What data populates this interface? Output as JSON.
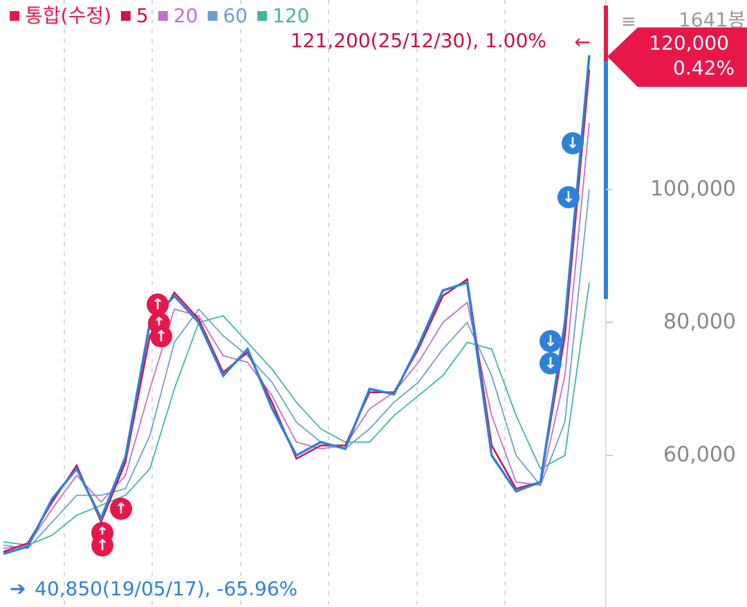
{
  "chart_data": {
    "type": "line",
    "legend": [
      "통합(수정)",
      "5",
      "20",
      "60",
      "120"
    ],
    "bar_count": "1641봉",
    "max_annotation": "121,200(25/12/30), 1.00%",
    "min_annotation": "40,850(19/05/17), -65.96%",
    "current": {
      "value": 120000,
      "label": "120,000"
    },
    "current_change": "0.42%",
    "ylim": [
      37200,
      128500
    ],
    "yticks": [
      {
        "value": 60000,
        "label": "60,000"
      },
      {
        "value": 80000,
        "label": "80,000"
      },
      {
        "value": 100000,
        "label": "100,000"
      }
    ],
    "series": [
      {
        "name": "통합(수정)",
        "color": "#2f80d8",
        "legend_color": "#e8174a",
        "values": [
          45200,
          46300,
          53500,
          58000,
          50500,
          59800,
          80000,
          84000,
          80000,
          72000,
          76000,
          67100,
          60000,
          62000,
          61000,
          70000,
          69200,
          76500,
          84800,
          86000,
          60000,
          54600,
          56000,
          80000,
          120200
        ]
      },
      {
        "name": "5",
        "color": "#d0124a",
        "values": [
          45500,
          46800,
          53000,
          58500,
          50000,
          59000,
          78000,
          84500,
          80500,
          72500,
          75500,
          68000,
          59500,
          61500,
          61500,
          69500,
          69500,
          76000,
          84000,
          86500,
          61500,
          55000,
          56000,
          78000,
          118000
        ]
      },
      {
        "name": "20",
        "color": "#c070d0",
        "values": [
          46000,
          46500,
          52000,
          57000,
          53000,
          57000,
          70000,
          82000,
          81000,
          75000,
          74000,
          69000,
          62000,
          61000,
          61500,
          67000,
          69500,
          74000,
          80000,
          83000,
          66000,
          56000,
          55500,
          72000,
          110000
        ]
      },
      {
        "name": "60",
        "color": "#6f9fd0",
        "values": [
          46500,
          46000,
          50000,
          54000,
          54000,
          55000,
          63000,
          77000,
          82000,
          78000,
          75000,
          71000,
          65000,
          62000,
          61000,
          64000,
          68000,
          71000,
          76000,
          80000,
          72000,
          60000,
          55500,
          65000,
          100000
        ]
      },
      {
        "name": "120",
        "color": "#40b8a0",
        "values": [
          47000,
          46500,
          48000,
          51000,
          52500,
          54000,
          58000,
          70000,
          80000,
          81000,
          77000,
          73000,
          68000,
          64000,
          62000,
          62000,
          66000,
          69000,
          72000,
          77000,
          76000,
          66000,
          58000,
          60000,
          86000
        ]
      }
    ]
  }
}
